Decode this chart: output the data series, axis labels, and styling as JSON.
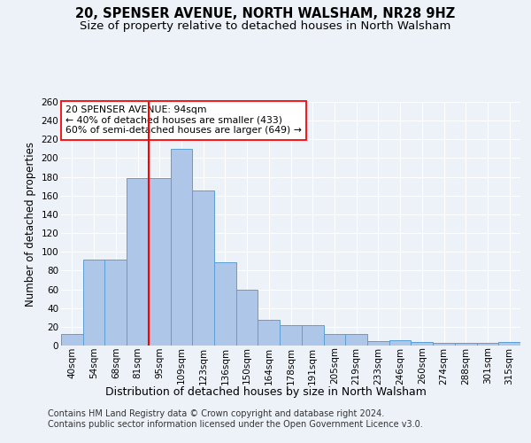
{
  "title1": "20, SPENSER AVENUE, NORTH WALSHAM, NR28 9HZ",
  "title2": "Size of property relative to detached houses in North Walsham",
  "xlabel": "Distribution of detached houses by size in North Walsham",
  "ylabel": "Number of detached properties",
  "categories": [
    "40sqm",
    "54sqm",
    "68sqm",
    "81sqm",
    "95sqm",
    "109sqm",
    "123sqm",
    "136sqm",
    "150sqm",
    "164sqm",
    "178sqm",
    "191sqm",
    "205sqm",
    "219sqm",
    "233sqm",
    "246sqm",
    "260sqm",
    "274sqm",
    "288sqm",
    "301sqm",
    "315sqm"
  ],
  "values": [
    12,
    92,
    92,
    179,
    179,
    210,
    165,
    89,
    60,
    27,
    22,
    22,
    12,
    12,
    5,
    6,
    4,
    3,
    3,
    3,
    4
  ],
  "bar_color": "#aec6e8",
  "bar_edge_color": "#5a9fd4",
  "red_line_x": 3.5,
  "annotation_lines": [
    "20 SPENSER AVENUE: 94sqm",
    "← 40% of detached houses are smaller (433)",
    "60% of semi-detached houses are larger (649) →"
  ],
  "ylim": [
    0,
    260
  ],
  "yticks": [
    0,
    20,
    40,
    60,
    80,
    100,
    120,
    140,
    160,
    180,
    200,
    220,
    240,
    260
  ],
  "footer1": "Contains HM Land Registry data © Crown copyright and database right 2024.",
  "footer2": "Contains public sector information licensed under the Open Government Licence v3.0.",
  "bg_color": "#edf2f9",
  "grid_color": "#ffffff",
  "title1_fontsize": 10.5,
  "title2_fontsize": 9.5,
  "xlabel_fontsize": 9,
  "ylabel_fontsize": 8.5,
  "tick_fontsize": 7.5,
  "footer_fontsize": 7
}
